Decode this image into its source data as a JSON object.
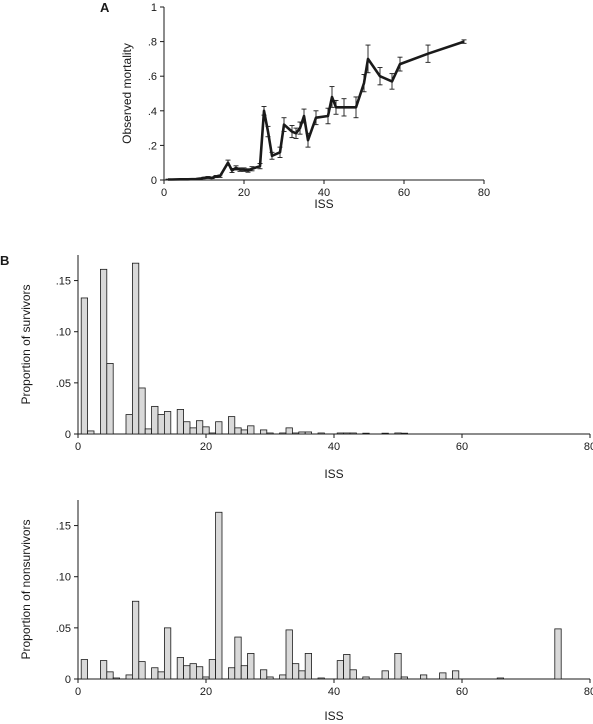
{
  "chart_data": [
    {
      "panel_label": "A",
      "type": "line",
      "xlabel": "ISS",
      "ylabel": "Observed mortality",
      "xlim": [
        0,
        80
      ],
      "ylim": [
        0,
        1
      ],
      "x_ticks": [
        "0",
        "20",
        "40",
        "60",
        "80"
      ],
      "y_ticks": [
        "0",
        ".2",
        ".4",
        ".6",
        ".8",
        "1"
      ],
      "error_bars": true,
      "x": [
        1,
        2,
        4,
        5,
        6,
        8,
        9,
        10,
        11,
        12,
        13,
        14,
        16,
        17,
        18,
        19,
        20,
        21,
        22,
        24,
        25,
        26,
        27,
        29,
        30,
        32,
        33,
        34,
        35,
        36,
        38,
        41,
        42,
        43,
        45,
        48,
        50,
        51,
        54,
        57,
        59,
        66,
        75
      ],
      "y": [
        0.003,
        0.003,
        0.004,
        0.004,
        0.004,
        0.006,
        0.008,
        0.012,
        0.015,
        0.012,
        0.02,
        0.022,
        0.1,
        0.055,
        0.07,
        0.06,
        0.06,
        0.055,
        0.065,
        0.08,
        0.4,
        0.28,
        0.14,
        0.16,
        0.32,
        0.28,
        0.27,
        0.3,
        0.37,
        0.23,
        0.36,
        0.37,
        0.48,
        0.42,
        0.42,
        0.42,
        0.56,
        0.7,
        0.6,
        0.57,
        0.67,
        0.73,
        0.8
      ],
      "err": [
        0.002,
        0.002,
        0.002,
        0.002,
        0.002,
        0.003,
        0.003,
        0.004,
        0.005,
        0.004,
        0.006,
        0.007,
        0.015,
        0.012,
        0.012,
        0.01,
        0.01,
        0.01,
        0.012,
        0.015,
        0.025,
        0.03,
        0.02,
        0.03,
        0.04,
        0.035,
        0.03,
        0.035,
        0.04,
        0.04,
        0.04,
        0.045,
        0.06,
        0.04,
        0.05,
        0.06,
        0.05,
        0.08,
        0.05,
        0.045,
        0.04,
        0.05,
        0.01
      ]
    },
    {
      "panel_label": "B",
      "type": "bar",
      "xlabel": "ISS",
      "ylabel": "Proportion of survivors",
      "xlim": [
        0,
        80
      ],
      "ylim": [
        0,
        0.175
      ],
      "x_ticks": [
        "0",
        "20",
        "40",
        "60",
        "80"
      ],
      "y_ticks": [
        "0",
        ".05",
        ".10",
        ".15"
      ],
      "x": [
        1,
        2,
        4,
        5,
        8,
        9,
        10,
        11,
        12,
        13,
        14,
        16,
        17,
        18,
        19,
        20,
        21,
        22,
        24,
        25,
        26,
        27,
        29,
        30,
        32,
        33,
        34,
        35,
        36,
        38,
        41,
        42,
        43,
        45,
        48,
        50,
        51
      ],
      "values": [
        0.133,
        0.003,
        0.161,
        0.069,
        0.019,
        0.167,
        0.045,
        0.005,
        0.027,
        0.019,
        0.022,
        0.024,
        0.012,
        0.006,
        0.013,
        0.007,
        0.001,
        0.012,
        0.017,
        0.006,
        0.004,
        0.008,
        0.004,
        0.001,
        0.001,
        0.006,
        0.001,
        0.002,
        0.002,
        0.001,
        0.001,
        0.001,
        0.001,
        0.0005,
        0.0005,
        0.001,
        0.0005
      ]
    },
    {
      "type": "bar",
      "xlabel": "ISS",
      "ylabel": "Proportion of nonsurvivors",
      "xlim": [
        0,
        80
      ],
      "ylim": [
        0,
        0.175
      ],
      "x_ticks": [
        "0",
        "20",
        "40",
        "60",
        "80"
      ],
      "y_ticks": [
        "0",
        ".05",
        ".10",
        ".15"
      ],
      "x": [
        1,
        4,
        5,
        6,
        8,
        9,
        10,
        12,
        13,
        14,
        16,
        17,
        18,
        19,
        20,
        21,
        22,
        24,
        25,
        26,
        27,
        29,
        30,
        32,
        33,
        34,
        35,
        36,
        38,
        41,
        42,
        43,
        45,
        48,
        50,
        51,
        54,
        57,
        59,
        66,
        75
      ],
      "values": [
        0.019,
        0.018,
        0.007,
        0.001,
        0.004,
        0.076,
        0.017,
        0.011,
        0.007,
        0.05,
        0.021,
        0.013,
        0.015,
        0.012,
        0.002,
        0.019,
        0.163,
        0.011,
        0.041,
        0.013,
        0.025,
        0.009,
        0.002,
        0.004,
        0.048,
        0.015,
        0.008,
        0.025,
        0.001,
        0.018,
        0.024,
        0.009,
        0.002,
        0.008,
        0.025,
        0.002,
        0.004,
        0.006,
        0.008,
        0.001,
        0.049
      ]
    }
  ]
}
